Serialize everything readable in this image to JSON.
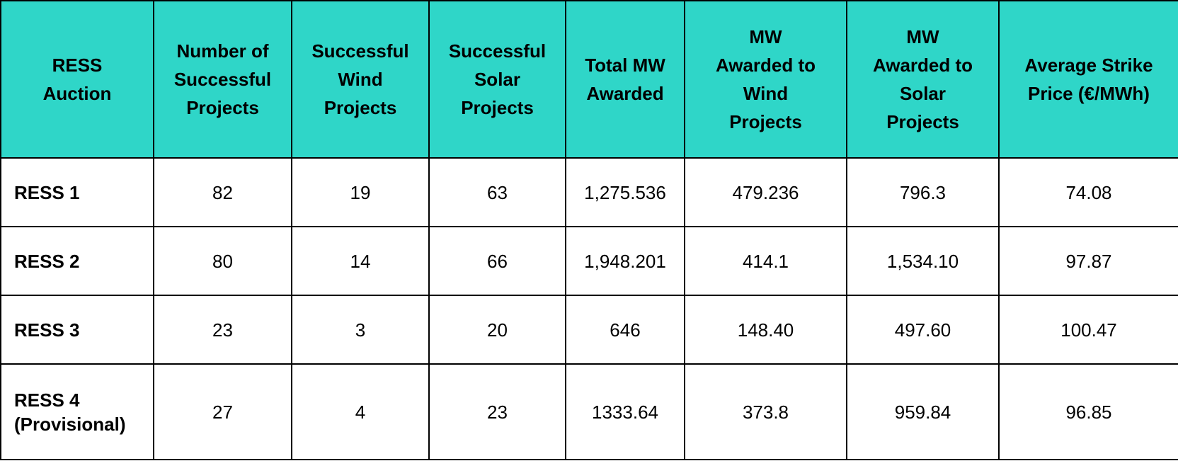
{
  "table": {
    "columns": [
      "RESS\nAuction",
      "Number of\nSuccessful\nProjects",
      "Successful\nWind\nProjects",
      "Successful\nSolar\nProjects",
      "Total MW\nAwarded",
      "MW\nAwarded to\nWind\nProjects",
      "MW\nAwarded to\nSolar\nProjects",
      "Average Strike\nPrice (€/MWh)"
    ],
    "rows": [
      [
        "RESS 1",
        "82",
        "19",
        "63",
        "1,275.536",
        "479.236",
        "796.3",
        "74.08"
      ],
      [
        "RESS 2",
        "80",
        "14",
        "66",
        "1,948.201",
        "414.1",
        "1,534.10",
        "97.87"
      ],
      [
        "RESS 3",
        "23",
        "3",
        "20",
        "646",
        "148.40",
        "497.60",
        "100.47"
      ],
      [
        "RESS 4\n(Provisional)",
        "27",
        "4",
        "23",
        "1333.64",
        "373.8",
        "959.84",
        "96.85"
      ]
    ]
  },
  "colors": {
    "header_bg": "#2fd6c8",
    "border": "#000000",
    "cell_bg": "#ffffff"
  }
}
